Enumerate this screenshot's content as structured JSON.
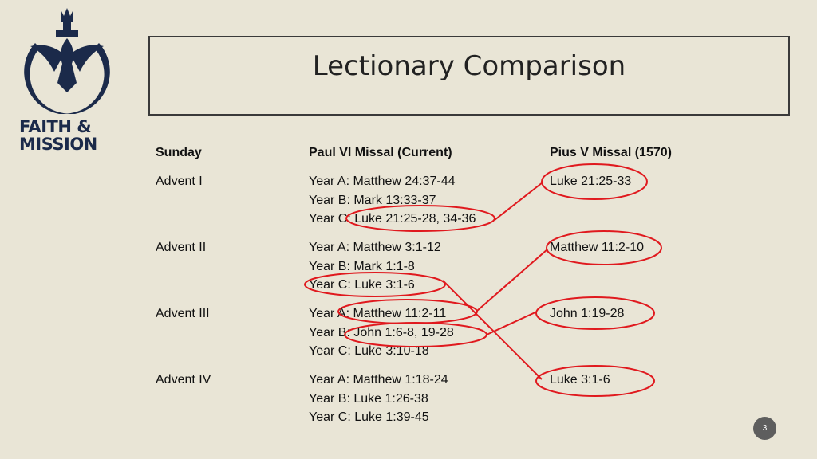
{
  "logo": {
    "line1": "FAITH &",
    "line2": "MISSION",
    "color": "#1b2a4a"
  },
  "title": "Lectionary Comparison",
  "columns": {
    "sunday": "Sunday",
    "paul": "Paul VI Missal (Current)",
    "pius": "Pius V Missal (1570)"
  },
  "rows": [
    {
      "sunday": "Advent I",
      "paul": [
        "Year A: Matthew 24:37-44",
        "Year B: Mark 13:33-37",
        "Year C: Luke 21:25-28, 34-36"
      ],
      "pius": "Luke 21:25-33"
    },
    {
      "sunday": "Advent II",
      "paul": [
        "Year A: Matthew 3:1-12",
        "Year B: Mark 1:1-8",
        "Year C: Luke 3:1-6"
      ],
      "pius": "Matthew 11:2-10"
    },
    {
      "sunday": "Advent III",
      "paul": [
        "Year A: Matthew 11:2-11",
        "Year B: John 1:6-8, 19-28",
        "Year C: Luke 3:10-18"
      ],
      "pius": "John 1:19-28"
    },
    {
      "sunday": "Advent IV",
      "paul": [
        "Year A: Matthew 1:18-24",
        "Year B: Luke 1:26-38",
        "Year C: Luke 1:39-45"
      ],
      "pius": "Luke 3:1-6"
    }
  ],
  "annotation_color": "#e0191e",
  "page_number": "3"
}
